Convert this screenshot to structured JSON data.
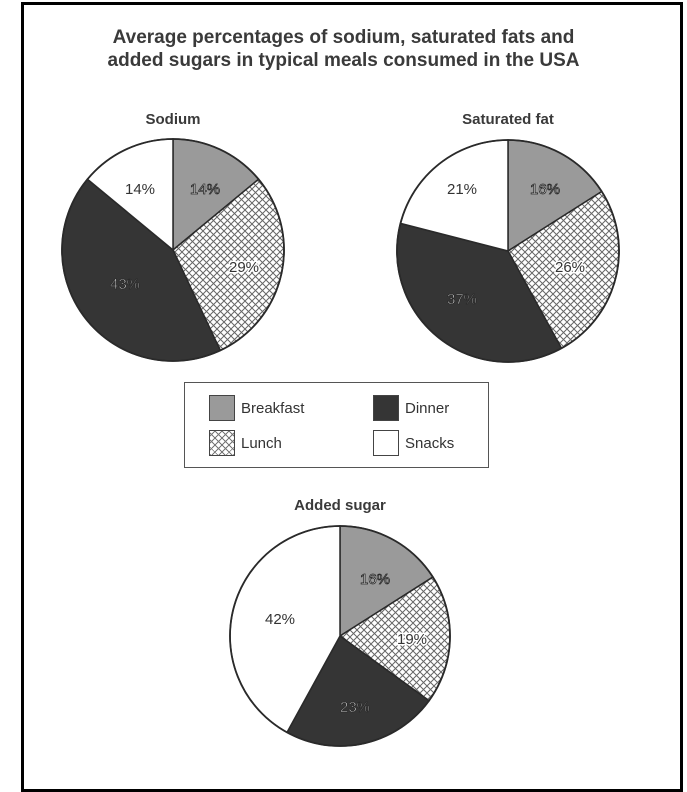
{
  "title_line1": "Average percentages of sodium, saturated fats and",
  "title_line2": "added sugars in typical meals consumed in the USA",
  "colors": {
    "breakfast": "#9a9a9a",
    "lunch": "#ffffff",
    "dinner": "#353535",
    "snacks": "#ffffff",
    "hatch": "#666666",
    "outline": "#2a2a2a"
  },
  "legend": {
    "breakfast": "Breakfast",
    "dinner": "Dinner",
    "lunch": "Lunch",
    "snacks": "Snacks"
  },
  "chart_data": [
    {
      "type": "pie",
      "title": "Sodium",
      "categories": [
        "Breakfast",
        "Lunch",
        "Dinner",
        "Snacks"
      ],
      "values": [
        14,
        29,
        43,
        14
      ],
      "labels": [
        "14%",
        "29%",
        "43%",
        "14%"
      ]
    },
    {
      "type": "pie",
      "title": "Saturated fat",
      "categories": [
        "Breakfast",
        "Lunch",
        "Dinner",
        "Snacks"
      ],
      "values": [
        16,
        26,
        37,
        21
      ],
      "labels": [
        "16%",
        "26%",
        "37%",
        "21%"
      ]
    },
    {
      "type": "pie",
      "title": "Added sugar",
      "categories": [
        "Breakfast",
        "Lunch",
        "Dinner",
        "Snacks"
      ],
      "values": [
        16,
        19,
        23,
        42
      ],
      "labels": [
        "16%",
        "19%",
        "23%",
        "42%"
      ]
    }
  ]
}
